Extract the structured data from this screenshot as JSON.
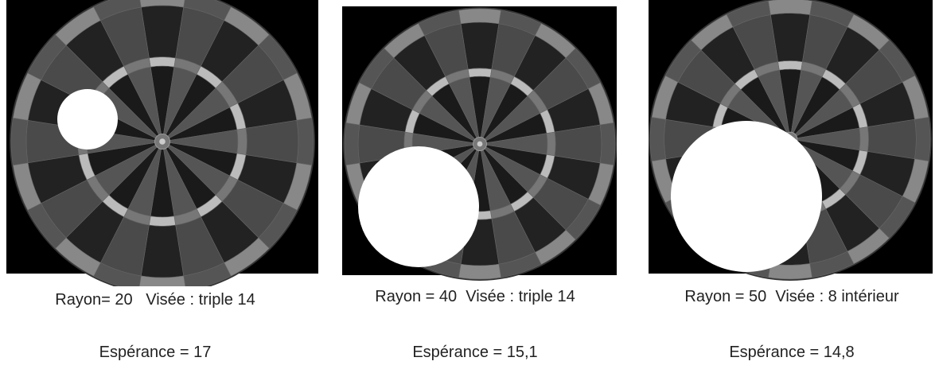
{
  "panels": [
    {
      "caption": "Rayon= 20   Visée : triple 14",
      "expectation": "Espérance = 17"
    },
    {
      "caption": "Rayon = 40  Visée : triple 14",
      "expectation": "Espérance = 15,1"
    },
    {
      "caption": "Rayon = 50  Visée : 8 intérieur",
      "expectation": "Espérance = 14,8"
    }
  ]
}
